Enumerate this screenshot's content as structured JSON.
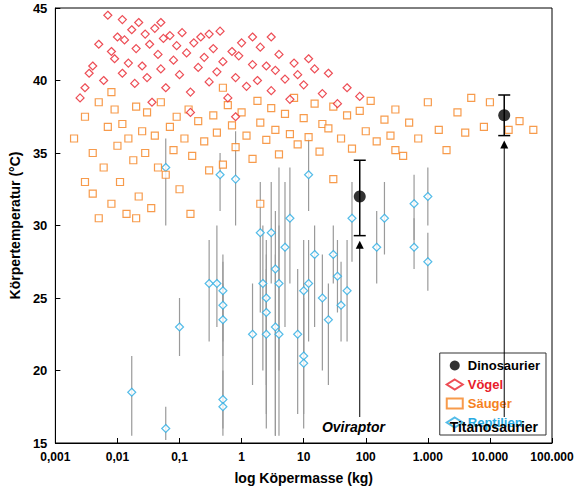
{
  "chart_data": {
    "type": "scatter",
    "x_label": "log Köpermasse (kg)",
    "y_label": "Körpertemperatur (°C)",
    "log": "x",
    "grid": false,
    "legend": "lower right",
    "xlim": [
      0.001,
      100000
    ],
    "xticks": [
      {
        "value": 0.001,
        "label": "0,001"
      },
      {
        "value": 0.01,
        "label": "0,01"
      },
      {
        "value": 0.1,
        "label": "0,1"
      },
      1,
      10,
      100,
      {
        "value": 1000,
        "label": "1.000"
      },
      {
        "value": 10000,
        "label": "10.000"
      },
      {
        "value": 100000,
        "label": "100.000"
      }
    ],
    "ylim": [
      15,
      45
    ],
    "yticks": [
      15,
      20,
      25,
      30,
      35,
      40,
      45
    ],
    "series": [
      {
        "name": "Dinosaurier",
        "color": "#000000",
        "marker": "circle",
        "x": [
          80,
          17000
        ],
        "values": [
          32,
          37.6
        ],
        "error_low": [
          29.3,
          36.2
        ],
        "error_high": [
          34.5,
          39.0
        ],
        "point_labels": [
          "Oviraptor",
          "Titanosaurier"
        ]
      },
      {
        "name": "Vögel",
        "color": "#e8202a",
        "marker": "diamond",
        "x": [
          0.003,
          0.004,
          0.005,
          0.006,
          0.007,
          0.008,
          0.009,
          0.01,
          0.012,
          0.013,
          0.015,
          0.017,
          0.019,
          0.02,
          0.022,
          0.025,
          0.028,
          0.03,
          0.033,
          0.036,
          0.04,
          0.045,
          0.05,
          0.055,
          0.06,
          0.07,
          0.08,
          0.09,
          0.1,
          0.11,
          0.13,
          0.15,
          0.17,
          0.2,
          0.22,
          0.25,
          0.3,
          0.35,
          0.4,
          0.45,
          0.5,
          0.6,
          0.7,
          0.8,
          0.9,
          1,
          1.2,
          1.5,
          1.8,
          2,
          2.5,
          3,
          3.5,
          4,
          5,
          6,
          7,
          8,
          10,
          12,
          15,
          20,
          25,
          35,
          50,
          80,
          0.0025,
          0.0035,
          0.05,
          0.012,
          0.3,
          1.5,
          0.8,
          3,
          0.15
        ],
        "values": [
          39.5,
          41,
          42.5,
          40,
          44.5,
          42,
          41.5,
          43,
          40.5,
          42.8,
          41.2,
          43.5,
          39.8,
          42.2,
          44,
          41,
          43.2,
          40.2,
          42.5,
          38.5,
          43.6,
          41.8,
          40.8,
          42.9,
          39.5,
          43.1,
          41.4,
          42.4,
          40.4,
          43.3,
          41.9,
          39.2,
          42.6,
          40.9,
          43.0,
          41.6,
          39.9,
          42.2,
          40.6,
          43.4,
          41.3,
          38.8,
          42.0,
          40.2,
          41.7,
          42.6,
          39.6,
          41.1,
          40.0,
          42.3,
          41.0,
          39.3,
          40.7,
          41.8,
          40.1,
          38.7,
          41.2,
          40.4,
          39.7,
          41.5,
          40.8,
          39.1,
          40.5,
          38.4,
          39.5,
          38.9,
          38.8,
          40.5,
          44.0,
          44.2,
          43.2,
          43.0,
          37.5,
          43.0,
          37.8
        ]
      },
      {
        "name": "Säuger",
        "color": "#f5821f",
        "marker": "square",
        "x": [
          0.002,
          0.003,
          0.003,
          0.004,
          0.005,
          0.005,
          0.006,
          0.007,
          0.008,
          0.009,
          0.01,
          0.011,
          0.012,
          0.014,
          0.015,
          0.018,
          0.02,
          0.022,
          0.025,
          0.028,
          0.03,
          0.035,
          0.04,
          0.045,
          0.05,
          0.06,
          0.07,
          0.08,
          0.09,
          0.1,
          0.12,
          0.14,
          0.16,
          0.2,
          0.25,
          0.3,
          0.35,
          0.4,
          0.5,
          0.6,
          0.7,
          0.8,
          1,
          1.2,
          1.5,
          1.8,
          2,
          2.5,
          3,
          3.5,
          4,
          5,
          6,
          7,
          8,
          10,
          12,
          15,
          18,
          20,
          25,
          30,
          40,
          50,
          60,
          80,
          100,
          120,
          150,
          200,
          250,
          300,
          400,
          500,
          700,
          1000,
          1500,
          2000,
          3000,
          4000,
          5000,
          8000,
          10000,
          20000,
          30000,
          50000,
          0.004,
          0.02,
          0.15,
          2,
          30,
          0.008,
          0.5,
          300
        ],
        "values": [
          36,
          33,
          37.5,
          35,
          30.5,
          38.5,
          34,
          36.8,
          31.5,
          38,
          35.5,
          33,
          37,
          30.8,
          36,
          34.5,
          38.2,
          32,
          36.5,
          35,
          37.8,
          31.2,
          36.2,
          34,
          38.5,
          33.5,
          36.8,
          35.2,
          37.5,
          32.5,
          36,
          38,
          34.8,
          37.2,
          35.8,
          33.8,
          37.6,
          36.4,
          34.2,
          38.3,
          36.9,
          35.4,
          37.8,
          36.2,
          34.6,
          38.6,
          37.1,
          35.9,
          38.1,
          36.6,
          34.9,
          37.7,
          36.3,
          38.8,
          35.6,
          37.4,
          36.1,
          38.4,
          35.1,
          37.0,
          36.7,
          38.2,
          36.0,
          37.6,
          35.3,
          37.9,
          36.5,
          38.6,
          35.8,
          37.3,
          36.2,
          38.0,
          34.8,
          37.1,
          36.0,
          38.5,
          36.6,
          35.2,
          37.8,
          36.4,
          38.8,
          36.8,
          38.5,
          36.6,
          37.2,
          36.6,
          32.2,
          30.5,
          30.8,
          31.5,
          33.2,
          39.2,
          39.5,
          35.2
        ]
      },
      {
        "name": "Reptilien",
        "color": "#29abe2",
        "marker": "diamond",
        "x": [
          0.017,
          0.06,
          0.06,
          0.1,
          0.3,
          0.4,
          0.45,
          0.5,
          0.5,
          0.5,
          0.5,
          0.5,
          0.8,
          1.5,
          2,
          2.2,
          2.5,
          2.5,
          2.5,
          3,
          3.5,
          3.5,
          4,
          4,
          5,
          6,
          8,
          10,
          10,
          10,
          12,
          12,
          15,
          20,
          25,
          30,
          35,
          40,
          50,
          60,
          150,
          200,
          600,
          600,
          1000,
          1000
        ],
        "values": [
          18.5,
          16,
          34,
          23,
          26,
          26,
          33.5,
          25.5,
          24.5,
          23.5,
          18,
          17.5,
          33.2,
          22.5,
          29.5,
          26,
          25,
          24,
          22.5,
          29.5,
          27,
          23,
          26,
          22.5,
          28.5,
          30.5,
          22.5,
          21,
          20.5,
          25.5,
          33.5,
          26,
          28,
          25,
          23.5,
          28,
          26.5,
          24.5,
          25.5,
          30.5,
          28.5,
          30.5,
          31.5,
          28.5,
          32,
          27.5
        ],
        "error_low": [
          15.5,
          15.2,
          30,
          21,
          22,
          23,
          31,
          22,
          21,
          19,
          16,
          15.5,
          30,
          19,
          24,
          20,
          17,
          19,
          16,
          26,
          15.5,
          15.5,
          20,
          15.5,
          23,
          26,
          17,
          17,
          16,
          21,
          31,
          22,
          23,
          20,
          19,
          26,
          24,
          22,
          22,
          27.5,
          26,
          28,
          29,
          27,
          30,
          25.5
        ],
        "error_high": [
          21,
          17.5,
          36,
          25,
          29,
          30,
          35,
          28,
          27.5,
          26,
          20,
          19,
          36.5,
          26,
          33,
          30,
          29,
          28,
          27,
          33,
          31,
          28,
          34,
          30,
          33,
          34,
          27,
          26,
          25,
          29,
          36,
          29,
          30,
          28,
          26,
          30,
          29,
          27.5,
          29,
          33,
          31,
          33,
          33.5,
          30.5,
          34,
          29.5
        ]
      }
    ]
  }
}
